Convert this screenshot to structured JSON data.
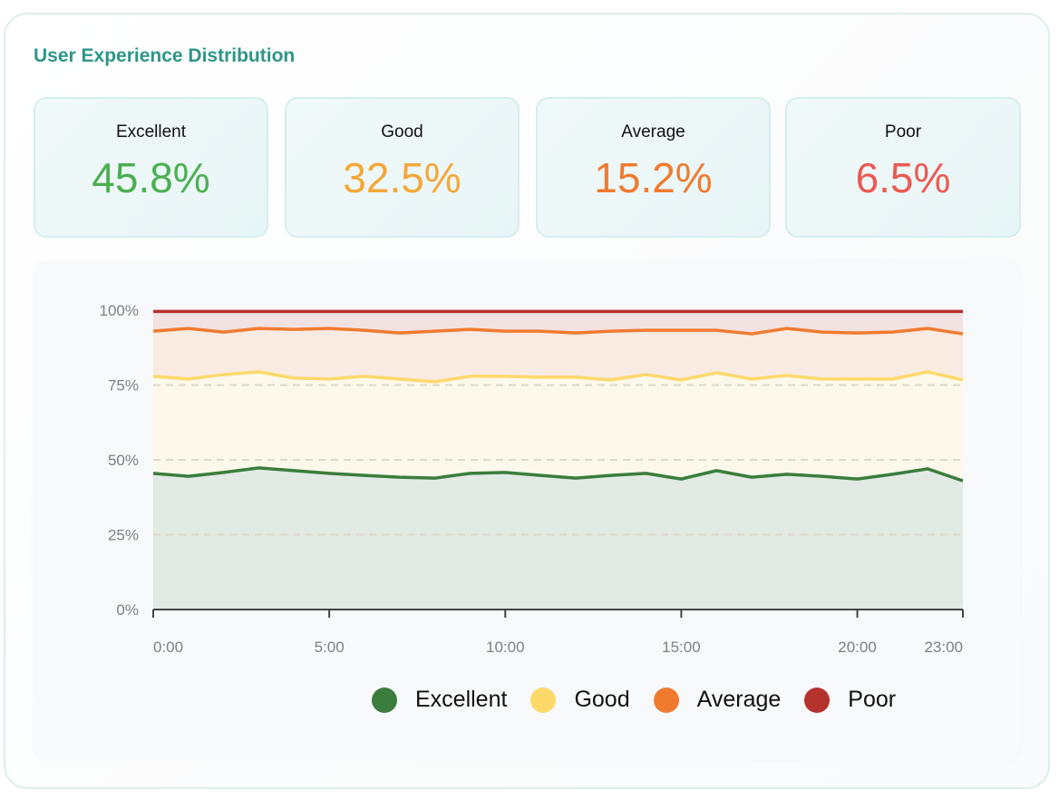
{
  "title": "User Experience Distribution",
  "cards": [
    {
      "label": "Excellent",
      "value": "45.8%",
      "color": "#4caf50"
    },
    {
      "label": "Good",
      "value": "32.5%",
      "color": "#f4a83a"
    },
    {
      "label": "Average",
      "value": "15.2%",
      "color": "#f07b2f"
    },
    {
      "label": "Poor",
      "value": "6.5%",
      "color": "#ec5a54"
    }
  ],
  "chart_data": {
    "type": "area",
    "stacked": true,
    "x": [
      "0:00",
      "1:00",
      "2:00",
      "3:00",
      "4:00",
      "5:00",
      "6:00",
      "7:00",
      "8:00",
      "9:00",
      "10:00",
      "11:00",
      "12:00",
      "13:00",
      "14:00",
      "15:00",
      "16:00",
      "17:00",
      "18:00",
      "19:00",
      "20:00",
      "21:00",
      "22:00",
      "23:00"
    ],
    "x_tick_labels": [
      "0:00",
      "5:00",
      "10:00",
      "15:00",
      "20:00",
      "23:00"
    ],
    "x_tick_indices": [
      0,
      5,
      10,
      15,
      20,
      23
    ],
    "y_tick_labels": [
      "0%",
      "25%",
      "50%",
      "75%",
      "100%"
    ],
    "y_ticks": [
      0,
      25,
      50,
      75,
      100
    ],
    "ylim": [
      0,
      100
    ],
    "grid": "horizontal dashed",
    "legend": "bottom-right",
    "series": [
      {
        "name": "Excellent",
        "color": "#3a7d3c",
        "fill": "#e1eae3",
        "values": [
          45.5,
          44.5,
          45.8,
          47.3,
          46.4,
          45.5,
          44.8,
          44.2,
          43.9,
          45.5,
          45.8,
          44.8,
          43.9,
          44.8,
          45.5,
          43.6,
          46.4,
          44.2,
          45.2,
          44.5,
          43.6,
          45.2,
          47.0,
          43.0
        ]
      },
      {
        "name": "Good",
        "color": "#fdd96a",
        "fill": "#fcf8ea",
        "values": [
          32.4,
          32.5,
          32.7,
          32.1,
          30.9,
          31.5,
          33.1,
          32.8,
          32.2,
          32.4,
          32.1,
          32.8,
          33.7,
          31.9,
          33.0,
          33.1,
          32.7,
          32.8,
          33.0,
          32.5,
          33.4,
          31.8,
          32.4,
          33.7
        ]
      },
      {
        "name": "Average",
        "color": "#f07b2f",
        "fill": "#f9ebe1",
        "values": [
          15.1,
          16.9,
          14.2,
          14.5,
          16.3,
          16.9,
          15.4,
          15.4,
          16.9,
          15.7,
          15.1,
          15.4,
          14.8,
          16.3,
          14.8,
          16.6,
          14.2,
          15.1,
          15.7,
          15.7,
          15.4,
          15.7,
          14.5,
          15.4
        ]
      },
      {
        "name": "Poor",
        "color": "#b5322c",
        "fill": "#f3e2e2",
        "values": [
          7.0,
          6.1,
          7.3,
          6.1,
          6.4,
          6.1,
          6.7,
          7.6,
          7.0,
          6.4,
          7.0,
          7.0,
          7.6,
          7.0,
          6.7,
          6.7,
          6.7,
          7.9,
          6.1,
          7.3,
          7.6,
          7.3,
          6.1,
          7.9
        ]
      }
    ]
  }
}
